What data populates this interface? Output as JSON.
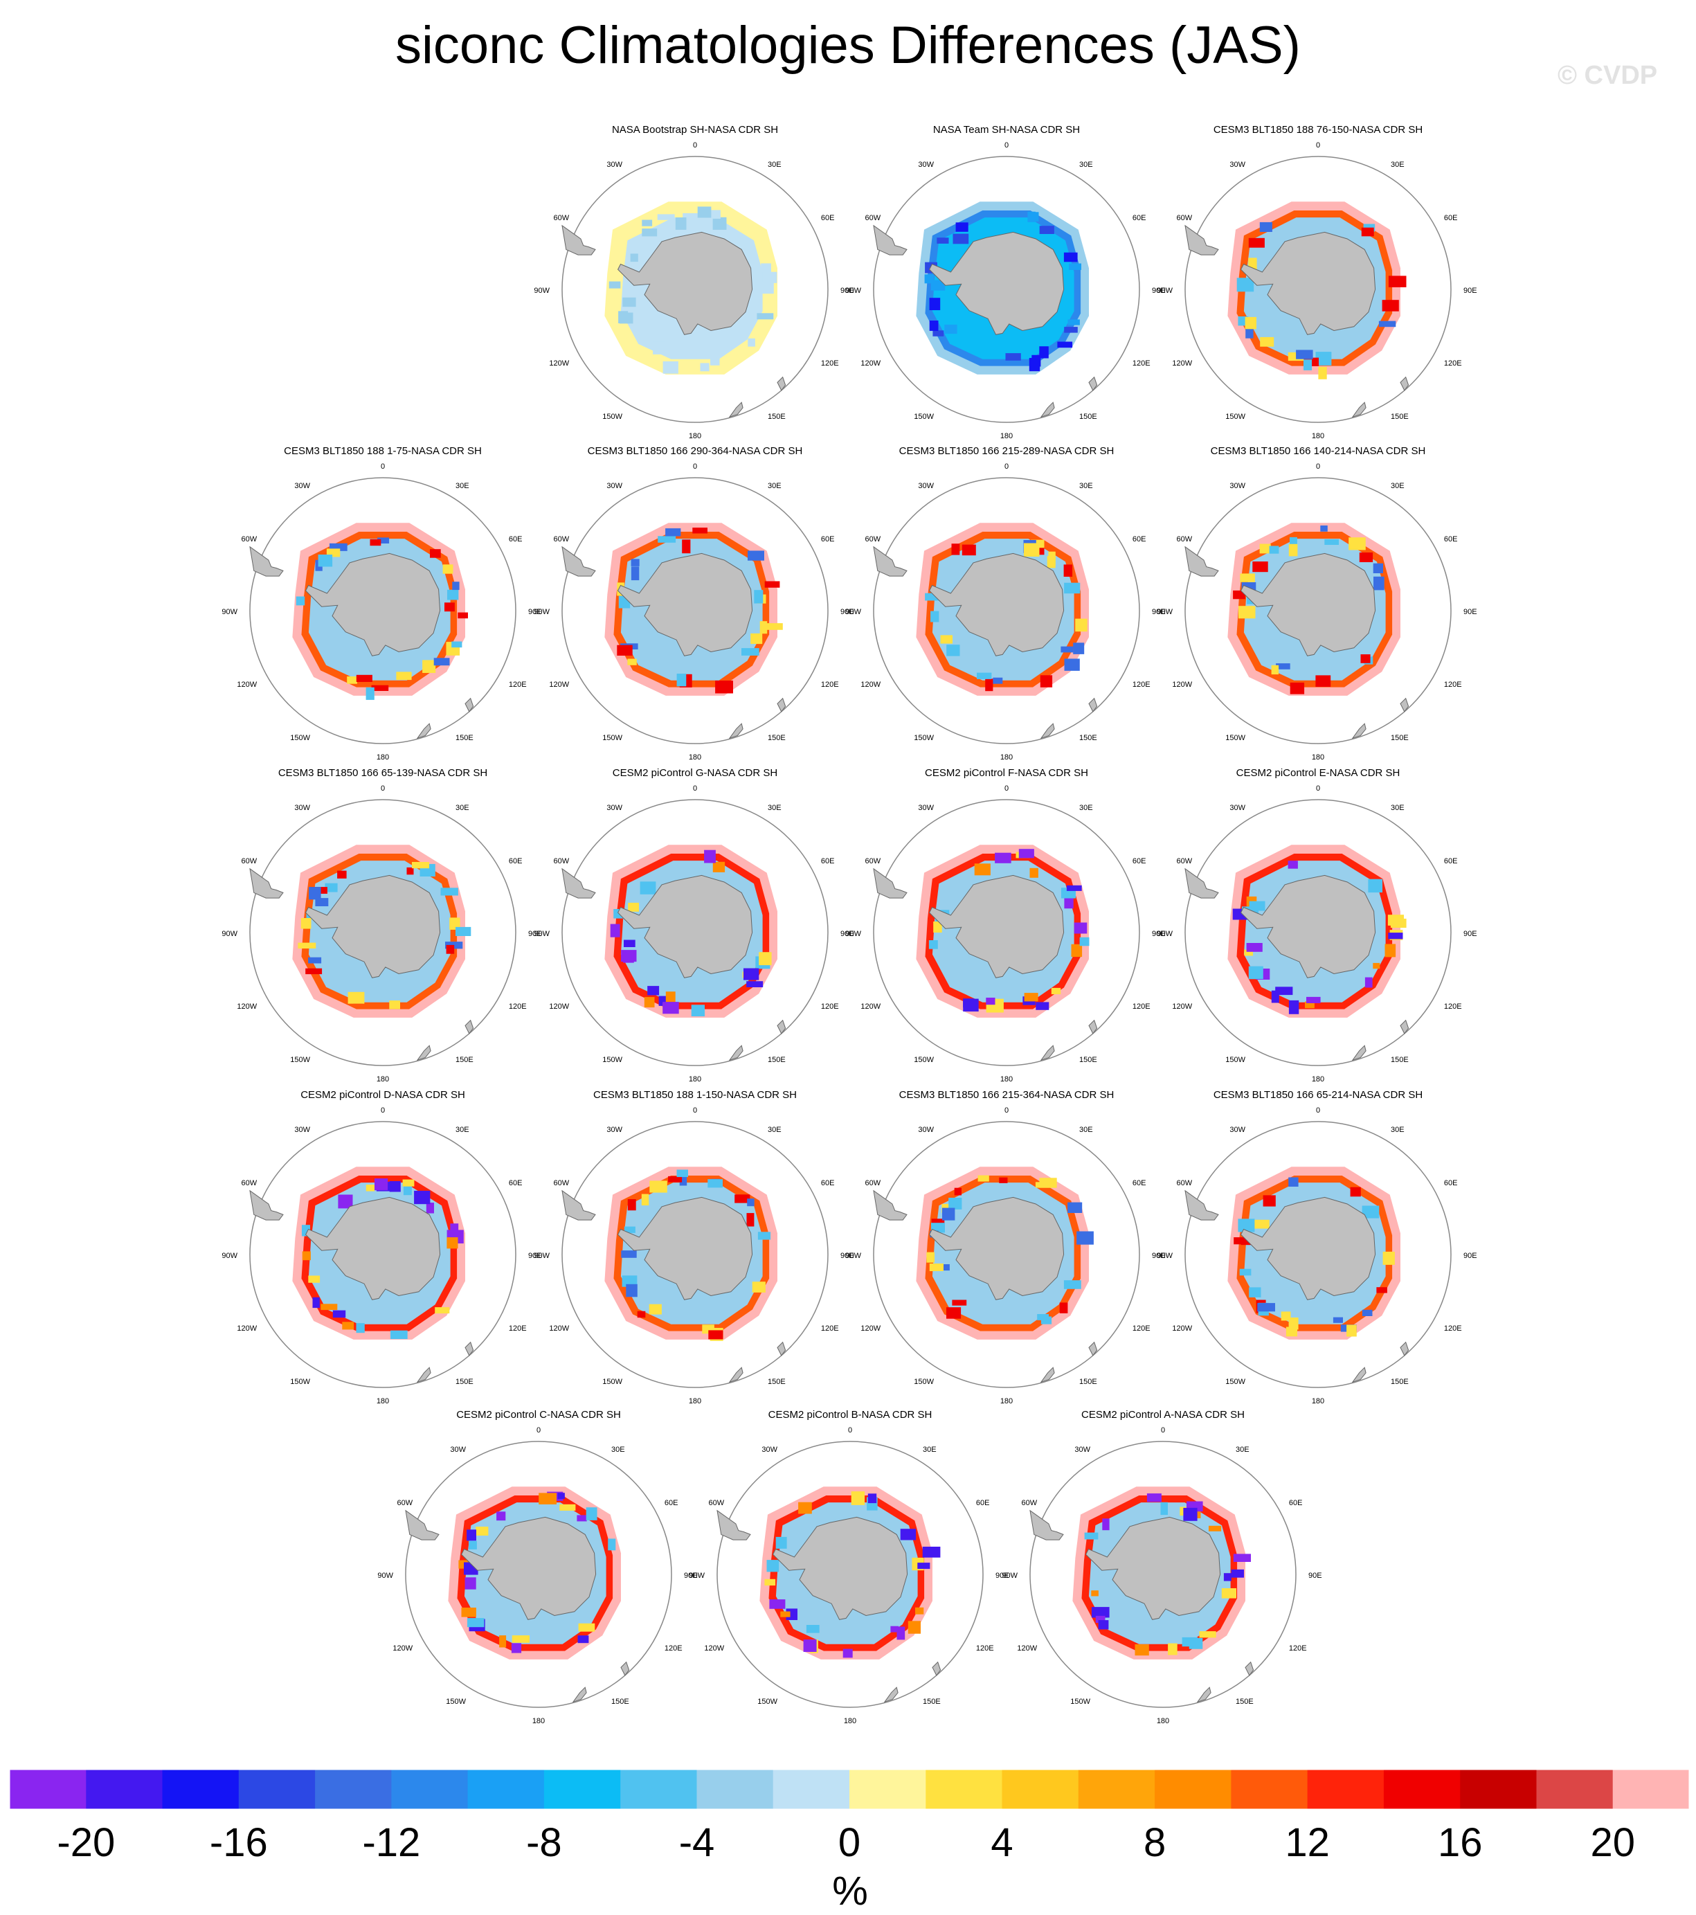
{
  "title": "siconc Climatologies Differences (JAS)",
  "watermark": "© CVDP",
  "chart_data": {
    "type": "heatmap",
    "projection": "south-polar-stereographic",
    "season": "JAS",
    "variable": "siconc",
    "lon_labels": [
      "0",
      "30E",
      "60E",
      "90E",
      "120E",
      "150E",
      "180",
      "150W",
      "120W",
      "90W",
      "60W",
      "30W"
    ],
    "panels": [
      {
        "title": "NASA Bootstrap SH-NASA CDR SH",
        "pattern": "bootstrap"
      },
      {
        "title": "NASA Team SH-NASA CDR SH",
        "pattern": "team"
      },
      {
        "title": "CESM3 BLT1850 188 76-150-NASA CDR SH",
        "pattern": "cesm3"
      },
      {
        "title": "CESM3 BLT1850 188 1-75-NASA CDR SH",
        "pattern": "cesm3"
      },
      {
        "title": "CESM3 BLT1850 166 290-364-NASA CDR SH",
        "pattern": "cesm3"
      },
      {
        "title": "CESM3 BLT1850 166 215-289-NASA CDR SH",
        "pattern": "cesm3"
      },
      {
        "title": "CESM3 BLT1850 166 140-214-NASA CDR SH",
        "pattern": "cesm3"
      },
      {
        "title": "CESM3 BLT1850 166 65-139-NASA CDR SH",
        "pattern": "cesm3"
      },
      {
        "title": "CESM2 piControl G-NASA CDR SH",
        "pattern": "cesm2"
      },
      {
        "title": "CESM2 piControl F-NASA CDR SH",
        "pattern": "cesm2"
      },
      {
        "title": "CESM2 piControl E-NASA CDR SH",
        "pattern": "cesm2"
      },
      {
        "title": "CESM2 piControl D-NASA CDR SH",
        "pattern": "cesm2"
      },
      {
        "title": "CESM3 BLT1850 188 1-150-NASA CDR SH",
        "pattern": "cesm3"
      },
      {
        "title": "CESM3 BLT1850 166 215-364-NASA CDR SH",
        "pattern": "cesm3"
      },
      {
        "title": "CESM3 BLT1850 166 65-214-NASA CDR SH",
        "pattern": "cesm3"
      },
      {
        "title": "CESM2 piControl C-NASA CDR SH",
        "pattern": "cesm2"
      },
      {
        "title": "CESM2 piControl B-NASA CDR SH",
        "pattern": "cesm2"
      },
      {
        "title": "CESM2 piControl A-NASA CDR SH",
        "pattern": "cesm2"
      }
    ],
    "colorbar": {
      "unit": "%",
      "range": [
        -22,
        22
      ],
      "tick_labels": [
        "-20",
        "-16",
        "-12",
        "-8",
        "-4",
        "0",
        "4",
        "8",
        "12",
        "16",
        "20"
      ],
      "tick_values": [
        -20,
        -16,
        -12,
        -8,
        -4,
        0,
        4,
        8,
        12,
        16,
        20
      ],
      "colors": [
        "#8a25f0",
        "#4418f0",
        "#1414f5",
        "#2c48e4",
        "#3a6ee3",
        "#2c88ec",
        "#1aa0f5",
        "#0cbcf5",
        "#50c2f0",
        "#98cfec",
        "#bfe1f5",
        "#fff59b",
        "#ffe140",
        "#ffc81e",
        "#ffa50a",
        "#ff8c00",
        "#ff5a0a",
        "#ff230a",
        "#f00000",
        "#c80000",
        "#dc4646",
        "#ffb4b4"
      ]
    }
  }
}
